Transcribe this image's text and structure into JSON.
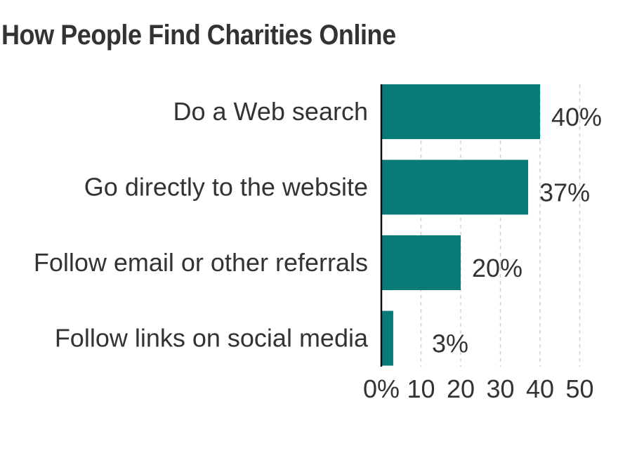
{
  "chart_data": {
    "type": "bar",
    "orientation": "horizontal",
    "title": "How People Find Charities Online",
    "categories": [
      "Do a Web search",
      "Go directly to the website",
      "Follow email or other referrals",
      "Follow links on social media"
    ],
    "values": [
      40,
      37,
      20,
      3
    ],
    "value_labels": [
      "40%",
      "37%",
      "20%",
      "3%"
    ],
    "xlim": [
      0,
      50
    ],
    "x_ticks": [
      0,
      10,
      20,
      30,
      40,
      50
    ],
    "x_tick_labels": [
      "0%",
      "10",
      "20",
      "30",
      "40",
      "50"
    ],
    "grid": "vertical dashed",
    "legend": "none",
    "colors": {
      "bar": "#087B76",
      "text": "#333333",
      "grid": "#d0d0d0",
      "axis": "#111111"
    }
  }
}
